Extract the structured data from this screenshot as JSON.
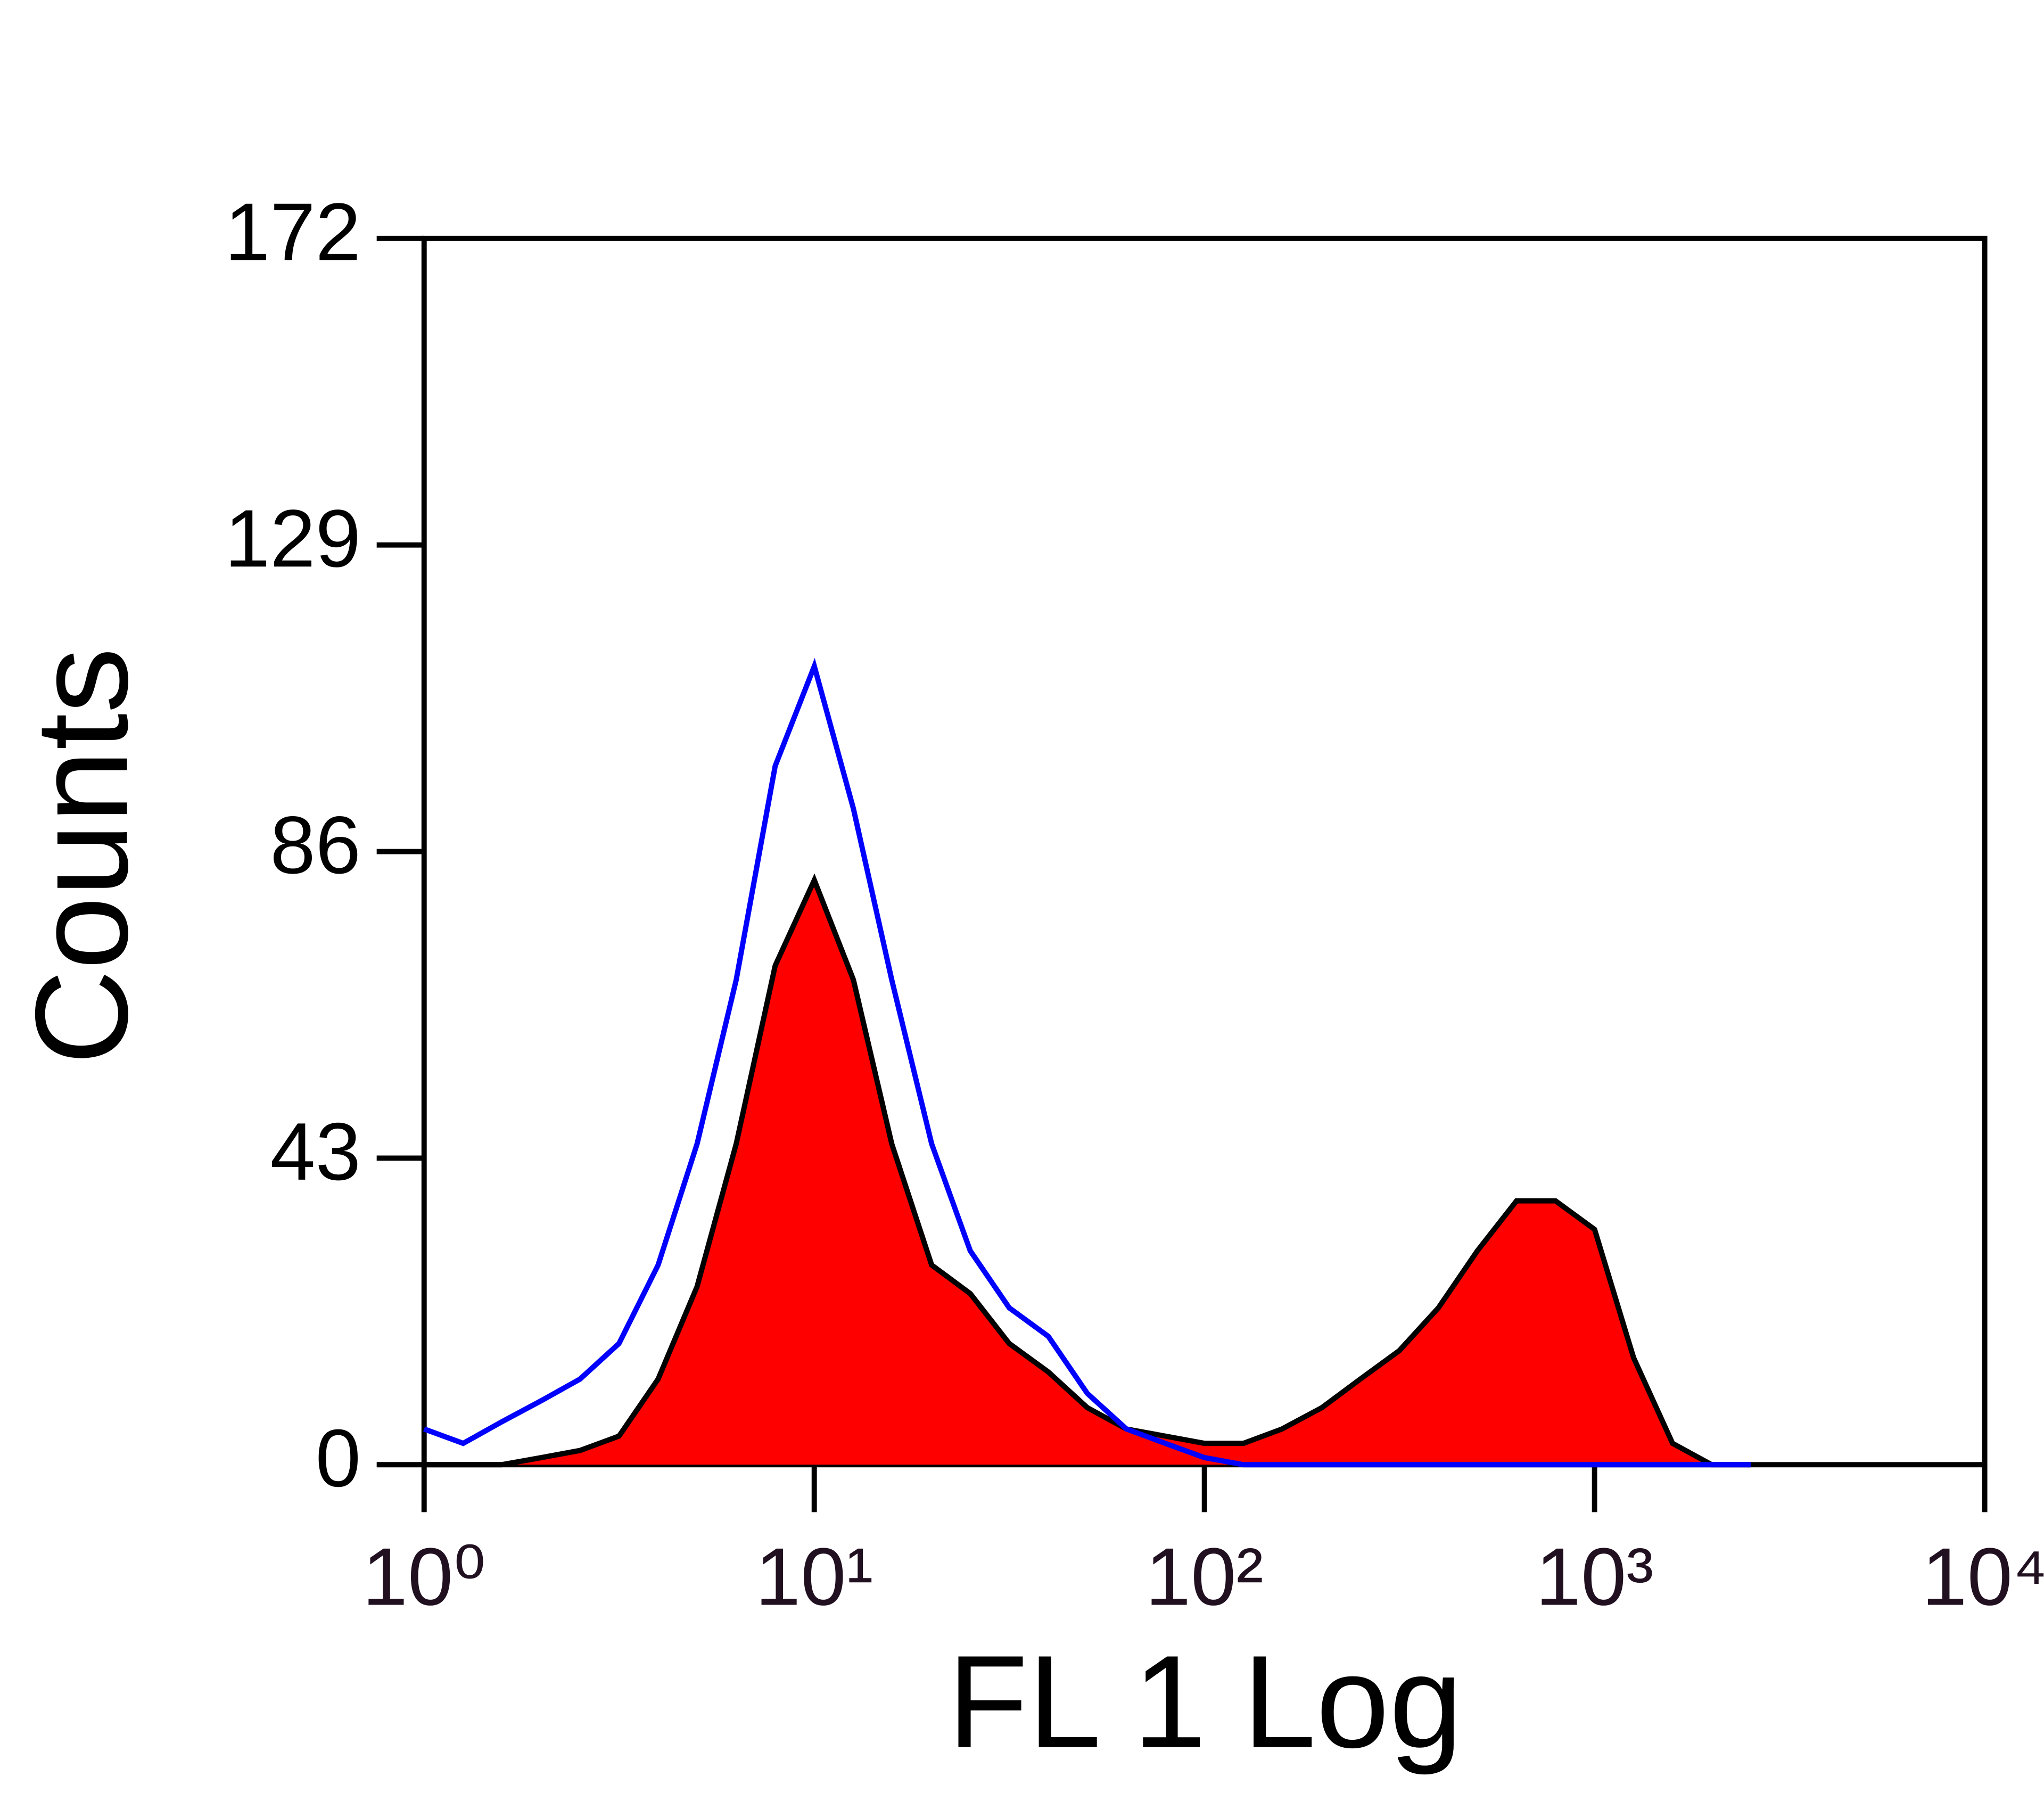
{
  "chart_data": {
    "type": "histogram-overlay",
    "x_label": "FL 1 Log",
    "y_label": "Counts",
    "xscale": "log",
    "x": [
      1,
      1.26,
      1.58,
      2,
      2.51,
      3.16,
      3.98,
      5.01,
      6.31,
      7.94,
      10,
      12.6,
      15.8,
      20,
      25.1,
      31.6,
      39.8,
      50.1,
      63.1,
      79.4,
      100,
      126,
      158,
      200,
      251,
      316,
      398,
      501,
      631,
      794,
      1000,
      1259,
      1585,
      1995,
      2512
    ],
    "series": [
      {
        "name": "sample",
        "color": "#ff0000",
        "values": [
          0,
          0,
          0,
          1,
          2,
          4,
          12,
          25,
          45,
          70,
          82,
          68,
          45,
          28,
          24,
          17,
          13,
          8,
          5,
          4,
          3,
          3,
          5,
          8,
          12,
          16,
          22,
          30,
          37,
          37,
          33,
          15,
          3,
          0,
          0
        ]
      },
      {
        "name": "control",
        "color": "#0000ff",
        "values": [
          5,
          3,
          6,
          9,
          12,
          17,
          28,
          45,
          68,
          98,
          112,
          92,
          68,
          45,
          30,
          22,
          18,
          10,
          5,
          3,
          1,
          0,
          0,
          0,
          0,
          0,
          0,
          0,
          0,
          0,
          0,
          0,
          0,
          0,
          0
        ]
      }
    ],
    "xlim": [
      1,
      10000
    ],
    "xticks": [
      {
        "value": 1,
        "label": "10⁰"
      },
      {
        "value": 10,
        "label": "10¹"
      },
      {
        "value": 100,
        "label": "10²"
      },
      {
        "value": 1000,
        "label": "10³"
      },
      {
        "value": 10000,
        "label": "10⁴"
      }
    ],
    "ylim": [
      0,
      172
    ],
    "yticks": [
      0,
      43,
      86,
      129,
      172
    ],
    "grid": false
  }
}
